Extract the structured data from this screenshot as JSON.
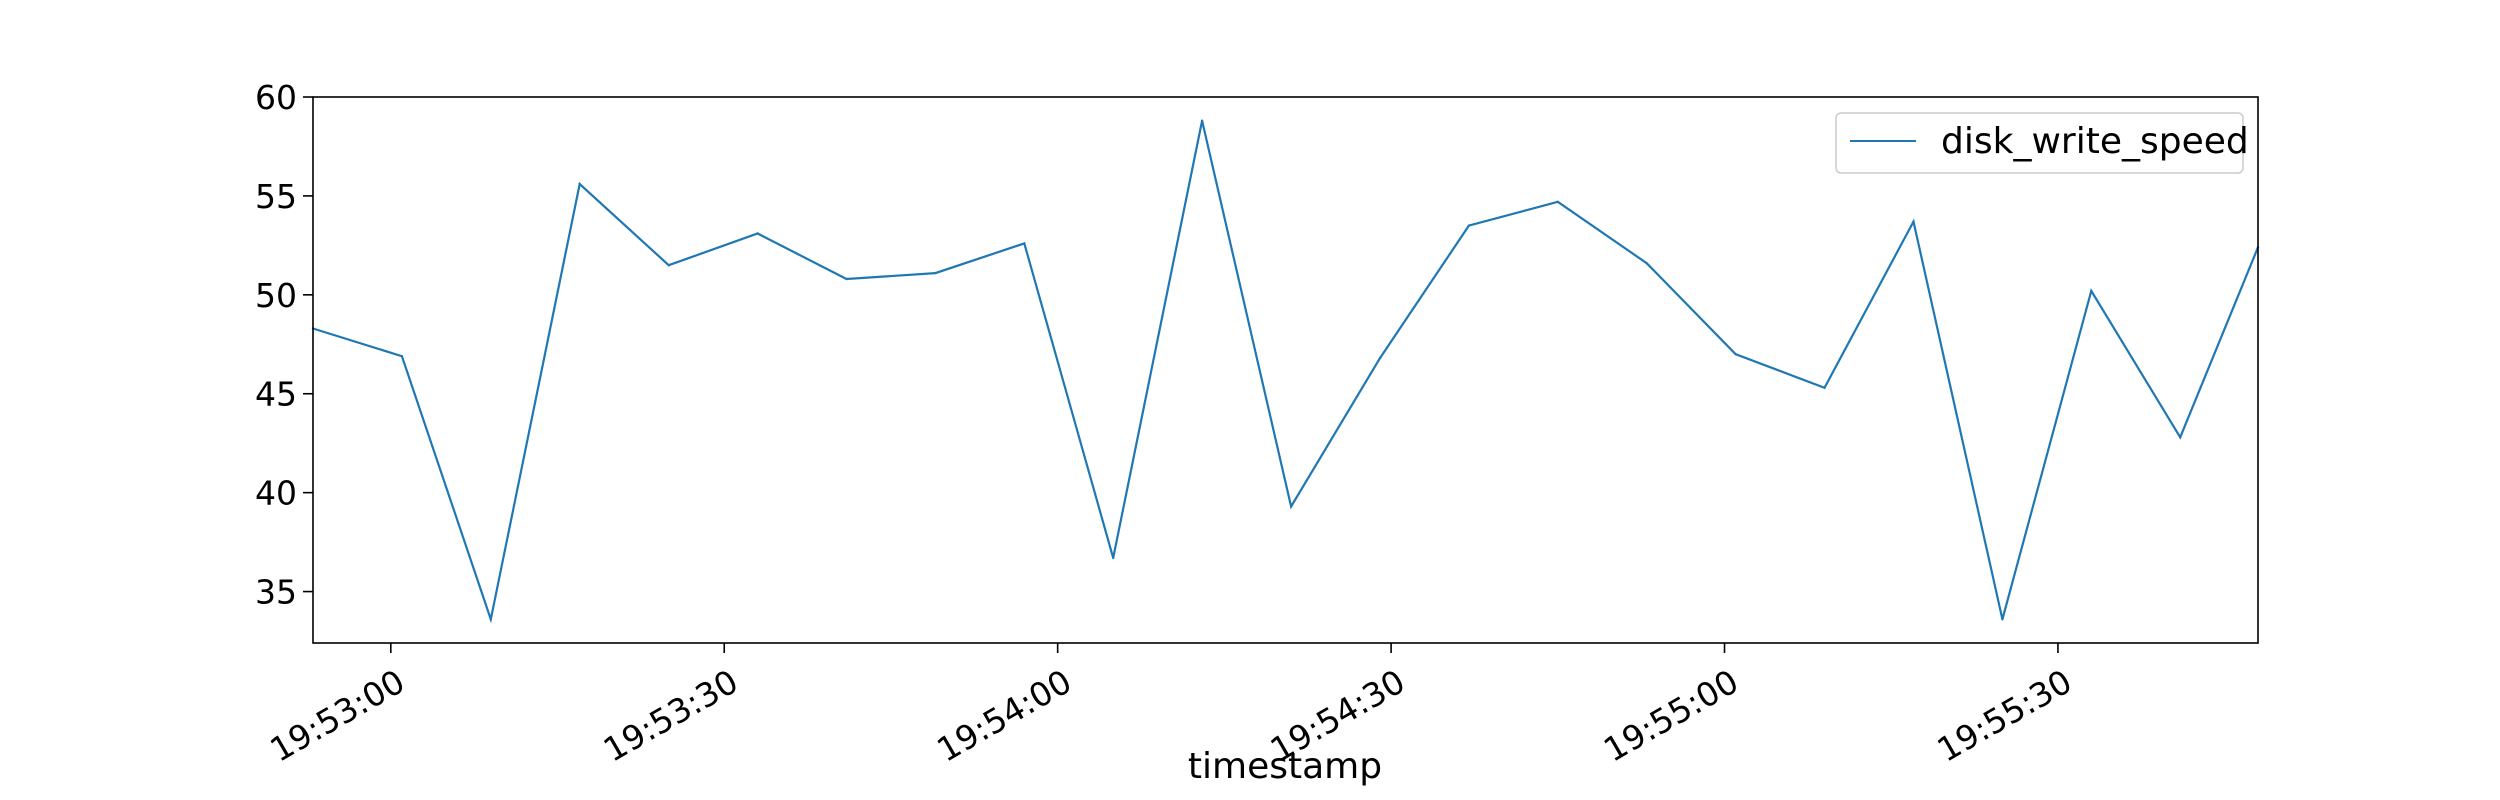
{
  "chart_data": {
    "type": "line",
    "title": "",
    "xlabel": "timestamp",
    "ylabel": "",
    "x_axis": {
      "type": "time",
      "tick_labels": [
        "19:53:00",
        "19:53:30",
        "19:54:00",
        "19:54:30",
        "19:55:00",
        "19:55:30"
      ],
      "tick_seconds": [
        0,
        30,
        60,
        90,
        120,
        150
      ],
      "range": [
        "19:52:53",
        "19:55:48"
      ]
    },
    "y_axis": {
      "ticks": [
        35,
        40,
        45,
        50,
        55,
        60
      ],
      "range": [
        32.4,
        60
      ]
    },
    "grid": false,
    "legend": {
      "placement": "top-right"
    },
    "series": [
      {
        "name": "disk_write_speed",
        "color": "#1f77b4",
        "x": [
          "19:52:53",
          "19:53:01",
          "19:53:09",
          "19:53:17",
          "19:53:25",
          "19:53:33",
          "19:53:41",
          "19:53:49",
          "19:53:57",
          "19:54:05",
          "19:54:13",
          "19:54:21",
          "19:54:29",
          "19:54:37",
          "19:54:45",
          "19:54:53",
          "19:55:01",
          "19:55:09",
          "19:55:17",
          "19:55:25",
          "19:55:33",
          "19:55:41",
          "19:55:48"
        ],
        "values": [
          48.3,
          46.9,
          33.6,
          55.6,
          51.5,
          53.1,
          50.8,
          51.1,
          52.6,
          36.7,
          58.8,
          39.3,
          46.8,
          53.5,
          54.7,
          51.6,
          47.0,
          45.3,
          53.7,
          33.6,
          50.2,
          42.8,
          52.4
        ]
      }
    ]
  }
}
